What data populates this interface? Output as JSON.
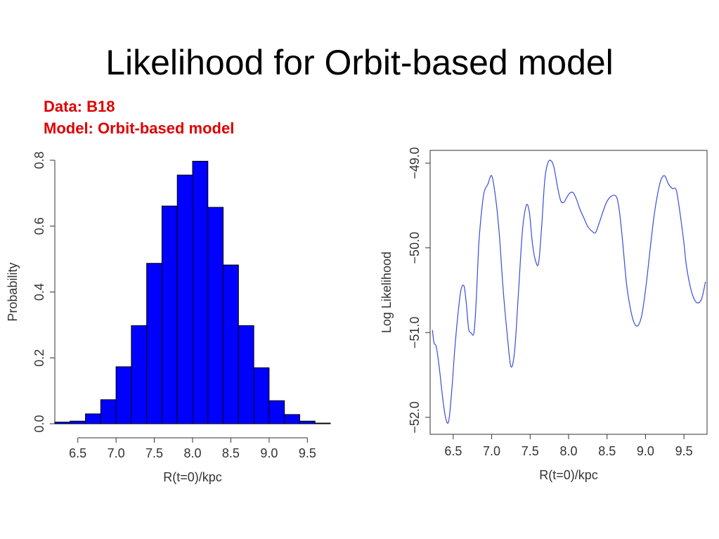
{
  "slide": {
    "title": "Likelihood for Orbit-based model",
    "caption_data": "Data: B18",
    "caption_model": "Model: Orbit-based model"
  },
  "colors": {
    "caption": "#e00000",
    "bars": "#0000ff",
    "line": "#3b4bdb"
  },
  "chart_data": [
    {
      "type": "bar",
      "xlabel": "R(t=0)/kpc",
      "ylabel": "Probability",
      "xlim": [
        6.2,
        9.8
      ],
      "ylim": [
        0,
        0.8
      ],
      "xticks": [
        "6.5",
        "7.0",
        "7.5",
        "8.0",
        "8.5",
        "9.0",
        "9.5"
      ],
      "yticks": [
        "0.0",
        "0.2",
        "0.4",
        "0.6",
        "0.8"
      ],
      "bin_width": 0.2,
      "bins": [
        6.2,
        6.4,
        6.6,
        6.8,
        7.0,
        7.2,
        7.4,
        7.6,
        7.8,
        8.0,
        8.2,
        8.4,
        8.6,
        8.8,
        9.0,
        9.2,
        9.4,
        9.6
      ],
      "values": [
        0.005,
        0.008,
        0.03,
        0.073,
        0.173,
        0.298,
        0.487,
        0.661,
        0.755,
        0.797,
        0.657,
        0.482,
        0.298,
        0.17,
        0.07,
        0.028,
        0.008,
        0.002
      ],
      "grid": false
    },
    {
      "type": "line",
      "xlabel": "R(t=0)/kpc",
      "ylabel": "Log Likelihood",
      "xlim": [
        6.2,
        9.8
      ],
      "ylim": [
        -52.2,
        -48.85
      ],
      "xticks": [
        "6.5",
        "7.0",
        "7.5",
        "8.0",
        "8.5",
        "9.0",
        "9.5"
      ],
      "yticks": [
        "-52.0",
        "-51.0",
        "-50.0",
        "-49.0"
      ],
      "x": [
        6.23,
        6.25,
        6.28,
        6.32,
        6.36,
        6.4,
        6.44,
        6.48,
        6.52,
        6.56,
        6.6,
        6.64,
        6.67,
        6.7,
        6.73,
        6.77,
        6.8,
        6.83,
        6.86,
        6.9,
        6.95,
        7.0,
        7.05,
        7.1,
        7.15,
        7.2,
        7.25,
        7.3,
        7.35,
        7.4,
        7.45,
        7.49,
        7.53,
        7.57,
        7.61,
        7.65,
        7.69,
        7.73,
        7.77,
        7.81,
        7.86,
        7.9,
        7.94,
        7.98,
        8.02,
        8.06,
        8.1,
        8.15,
        8.2,
        8.25,
        8.3,
        8.35,
        8.4,
        8.5,
        8.6,
        8.65,
        8.7,
        8.75,
        8.8,
        8.85,
        8.9,
        8.95,
        9.0,
        9.05,
        9.1,
        9.15,
        9.2,
        9.25,
        9.3,
        9.35,
        9.4,
        9.45,
        9.5,
        9.53,
        9.58,
        9.63,
        9.68,
        9.73,
        9.78
      ],
      "y": [
        -50.97,
        -51.12,
        -51.17,
        -51.42,
        -51.75,
        -52.0,
        -52.05,
        -51.7,
        -51.2,
        -50.8,
        -50.5,
        -50.45,
        -50.65,
        -50.95,
        -51.0,
        -51.0,
        -50.6,
        -50.0,
        -49.65,
        -49.35,
        -49.25,
        -49.15,
        -49.4,
        -49.85,
        -50.5,
        -51.0,
        -51.4,
        -51.2,
        -50.5,
        -49.8,
        -49.5,
        -49.58,
        -49.95,
        -50.15,
        -50.18,
        -49.75,
        -49.2,
        -49.0,
        -48.97,
        -49.05,
        -49.3,
        -49.45,
        -49.46,
        -49.4,
        -49.35,
        -49.35,
        -49.42,
        -49.55,
        -49.65,
        -49.75,
        -49.8,
        -49.82,
        -49.7,
        -49.45,
        -49.38,
        -49.5,
        -49.9,
        -50.4,
        -50.7,
        -50.88,
        -50.92,
        -50.8,
        -50.5,
        -50.1,
        -49.7,
        -49.4,
        -49.2,
        -49.15,
        -49.25,
        -49.3,
        -49.32,
        -49.6,
        -49.95,
        -50.2,
        -50.45,
        -50.6,
        -50.65,
        -50.6,
        -50.4
      ],
      "grid": false
    }
  ]
}
